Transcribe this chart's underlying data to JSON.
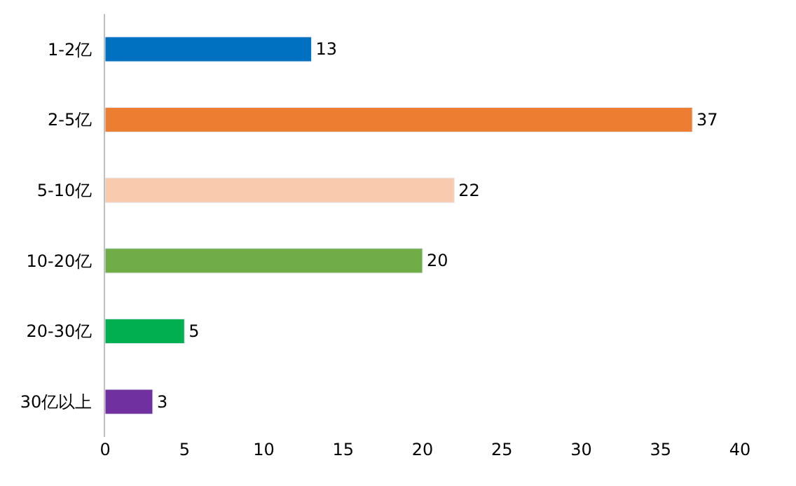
{
  "chart_data": {
    "type": "bar",
    "orientation": "horizontal",
    "categories": [
      "1-2亿",
      "2-5亿",
      "5-10亿",
      "10-20亿",
      "20-30亿",
      "30亿以上"
    ],
    "values": [
      13,
      37,
      22,
      20,
      5,
      3
    ],
    "colors": [
      "#0070c0",
      "#ed7d31",
      "#f8cbad",
      "#70ad47",
      "#00b050",
      "#7030a0"
    ],
    "xlim": [
      0,
      40
    ],
    "xticks": [
      0,
      5,
      10,
      15,
      20,
      25,
      30,
      35,
      40
    ],
    "data_labels": true
  }
}
